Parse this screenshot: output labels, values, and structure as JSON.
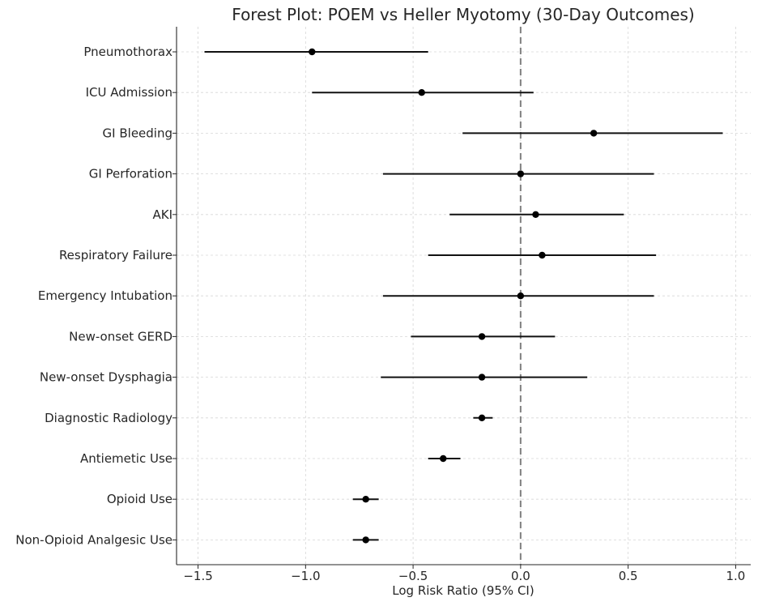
{
  "chart_data": {
    "type": "scatter",
    "subtype": "forest-plot",
    "title": "Forest Plot: POEM vs Heller Myotomy (30-Day Outcomes)",
    "xlabel": "Log Risk Ratio (95% CI)",
    "ylabel": "",
    "xlim": [
      -1.6,
      1.07
    ],
    "x_ticks": [
      -1.5,
      -1.0,
      -0.5,
      0.0,
      0.5,
      1.0
    ],
    "x_tick_labels": [
      "−1.5",
      "−1.0",
      "−0.5",
      "0.0",
      "0.5",
      "1.0"
    ],
    "reference_line": 0.0,
    "grid": true,
    "categories": [
      "Pneumothorax",
      "ICU Admission",
      "GI Bleeding",
      "GI Perforation",
      "AKI",
      "Respiratory Failure",
      "Emergency Intubation",
      "New-onset GERD",
      "New-onset Dysphagia",
      "Diagnostic Radiology",
      "Antiemetic Use",
      "Opioid Use",
      "Non-Opioid Analgesic Use"
    ],
    "series": [
      {
        "estimate": [
          -0.97,
          -0.46,
          0.34,
          0.0,
          0.07,
          0.1,
          0.0,
          -0.18,
          -0.18,
          -0.18,
          -0.36,
          -0.72,
          -0.72
        ],
        "ci_low": [
          -1.47,
          -0.97,
          -0.27,
          -0.64,
          -0.33,
          -0.43,
          -0.64,
          -0.51,
          -0.65,
          -0.22,
          -0.43,
          -0.78,
          -0.78
        ],
        "ci_high": [
          -0.43,
          0.06,
          0.94,
          0.62,
          0.48,
          0.63,
          0.62,
          0.16,
          0.31,
          -0.13,
          -0.28,
          -0.66,
          -0.66
        ]
      }
    ]
  }
}
